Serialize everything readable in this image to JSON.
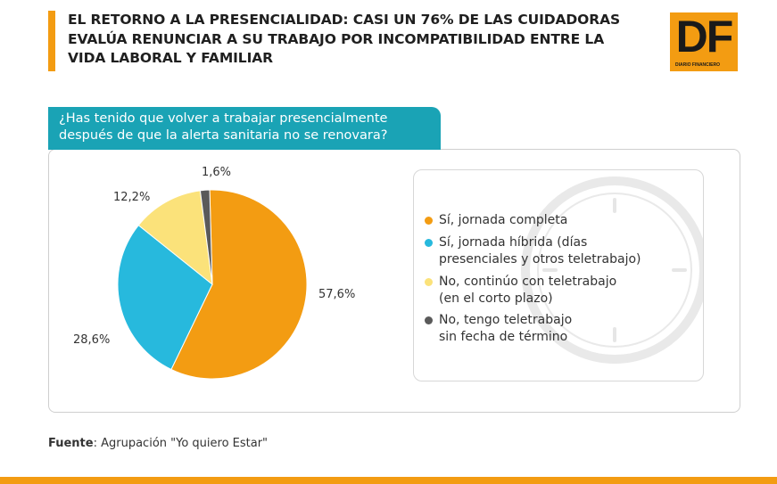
{
  "header": {
    "title": "EL RETORNO A LA PRESENCIALIDAD: CASI UN 76% DE LAS CUIDADORAS EVALÚA RENUNCIAR A SU TRABAJO POR INCOMPATIBILIDAD ENTRE LA VIDA LABORAL Y FAMILIAR",
    "accent_color": "#f39c12"
  },
  "logo": {
    "text": "DF",
    "subtitle": "DIARIO FINANCIERO"
  },
  "question": "¿Has tenido que volver a trabajar presencialmente después de que la alerta sanitaria no se renovara?",
  "chart_data": {
    "type": "pie",
    "title": "",
    "start_angle_deg": -1.6,
    "slices": [
      {
        "label": "Sí, jornada completa",
        "value": 57.6,
        "value_label": "57,6%",
        "color": "#f39c12"
      },
      {
        "label": "Sí, jornada híbrida (días presenciales y otros teletrabajo)",
        "value": 28.6,
        "value_label": "28,6%",
        "color": "#27b9dd"
      },
      {
        "label": "No, continúo con teletrabajo (en el corto plazo)",
        "value": 12.2,
        "value_label": "12,2%",
        "color": "#fbe27a"
      },
      {
        "label": "No, tengo teletrabajo sin fecha de término",
        "value": 1.6,
        "value_label": "1,6%",
        "color": "#5a5a5a"
      }
    ],
    "legend_position": "right"
  },
  "legend": {
    "items": [
      {
        "line1": "Sí, jornada completa",
        "line2": "",
        "color": "#f39c12"
      },
      {
        "line1": "Sí, jornada híbrida (días",
        "line2": "presenciales y otros teletrabajo)",
        "color": "#27b9dd"
      },
      {
        "line1": "No, continúo con teletrabajo",
        "line2": "(en el corto plazo)",
        "color": "#fbe27a"
      },
      {
        "line1": "No, tengo teletrabajo",
        "line2": "sin fecha de término",
        "color": "#5a5a5a"
      }
    ]
  },
  "source": {
    "label": "Fuente",
    "text": ": Agrupación \"Yo quiero Estar\""
  }
}
